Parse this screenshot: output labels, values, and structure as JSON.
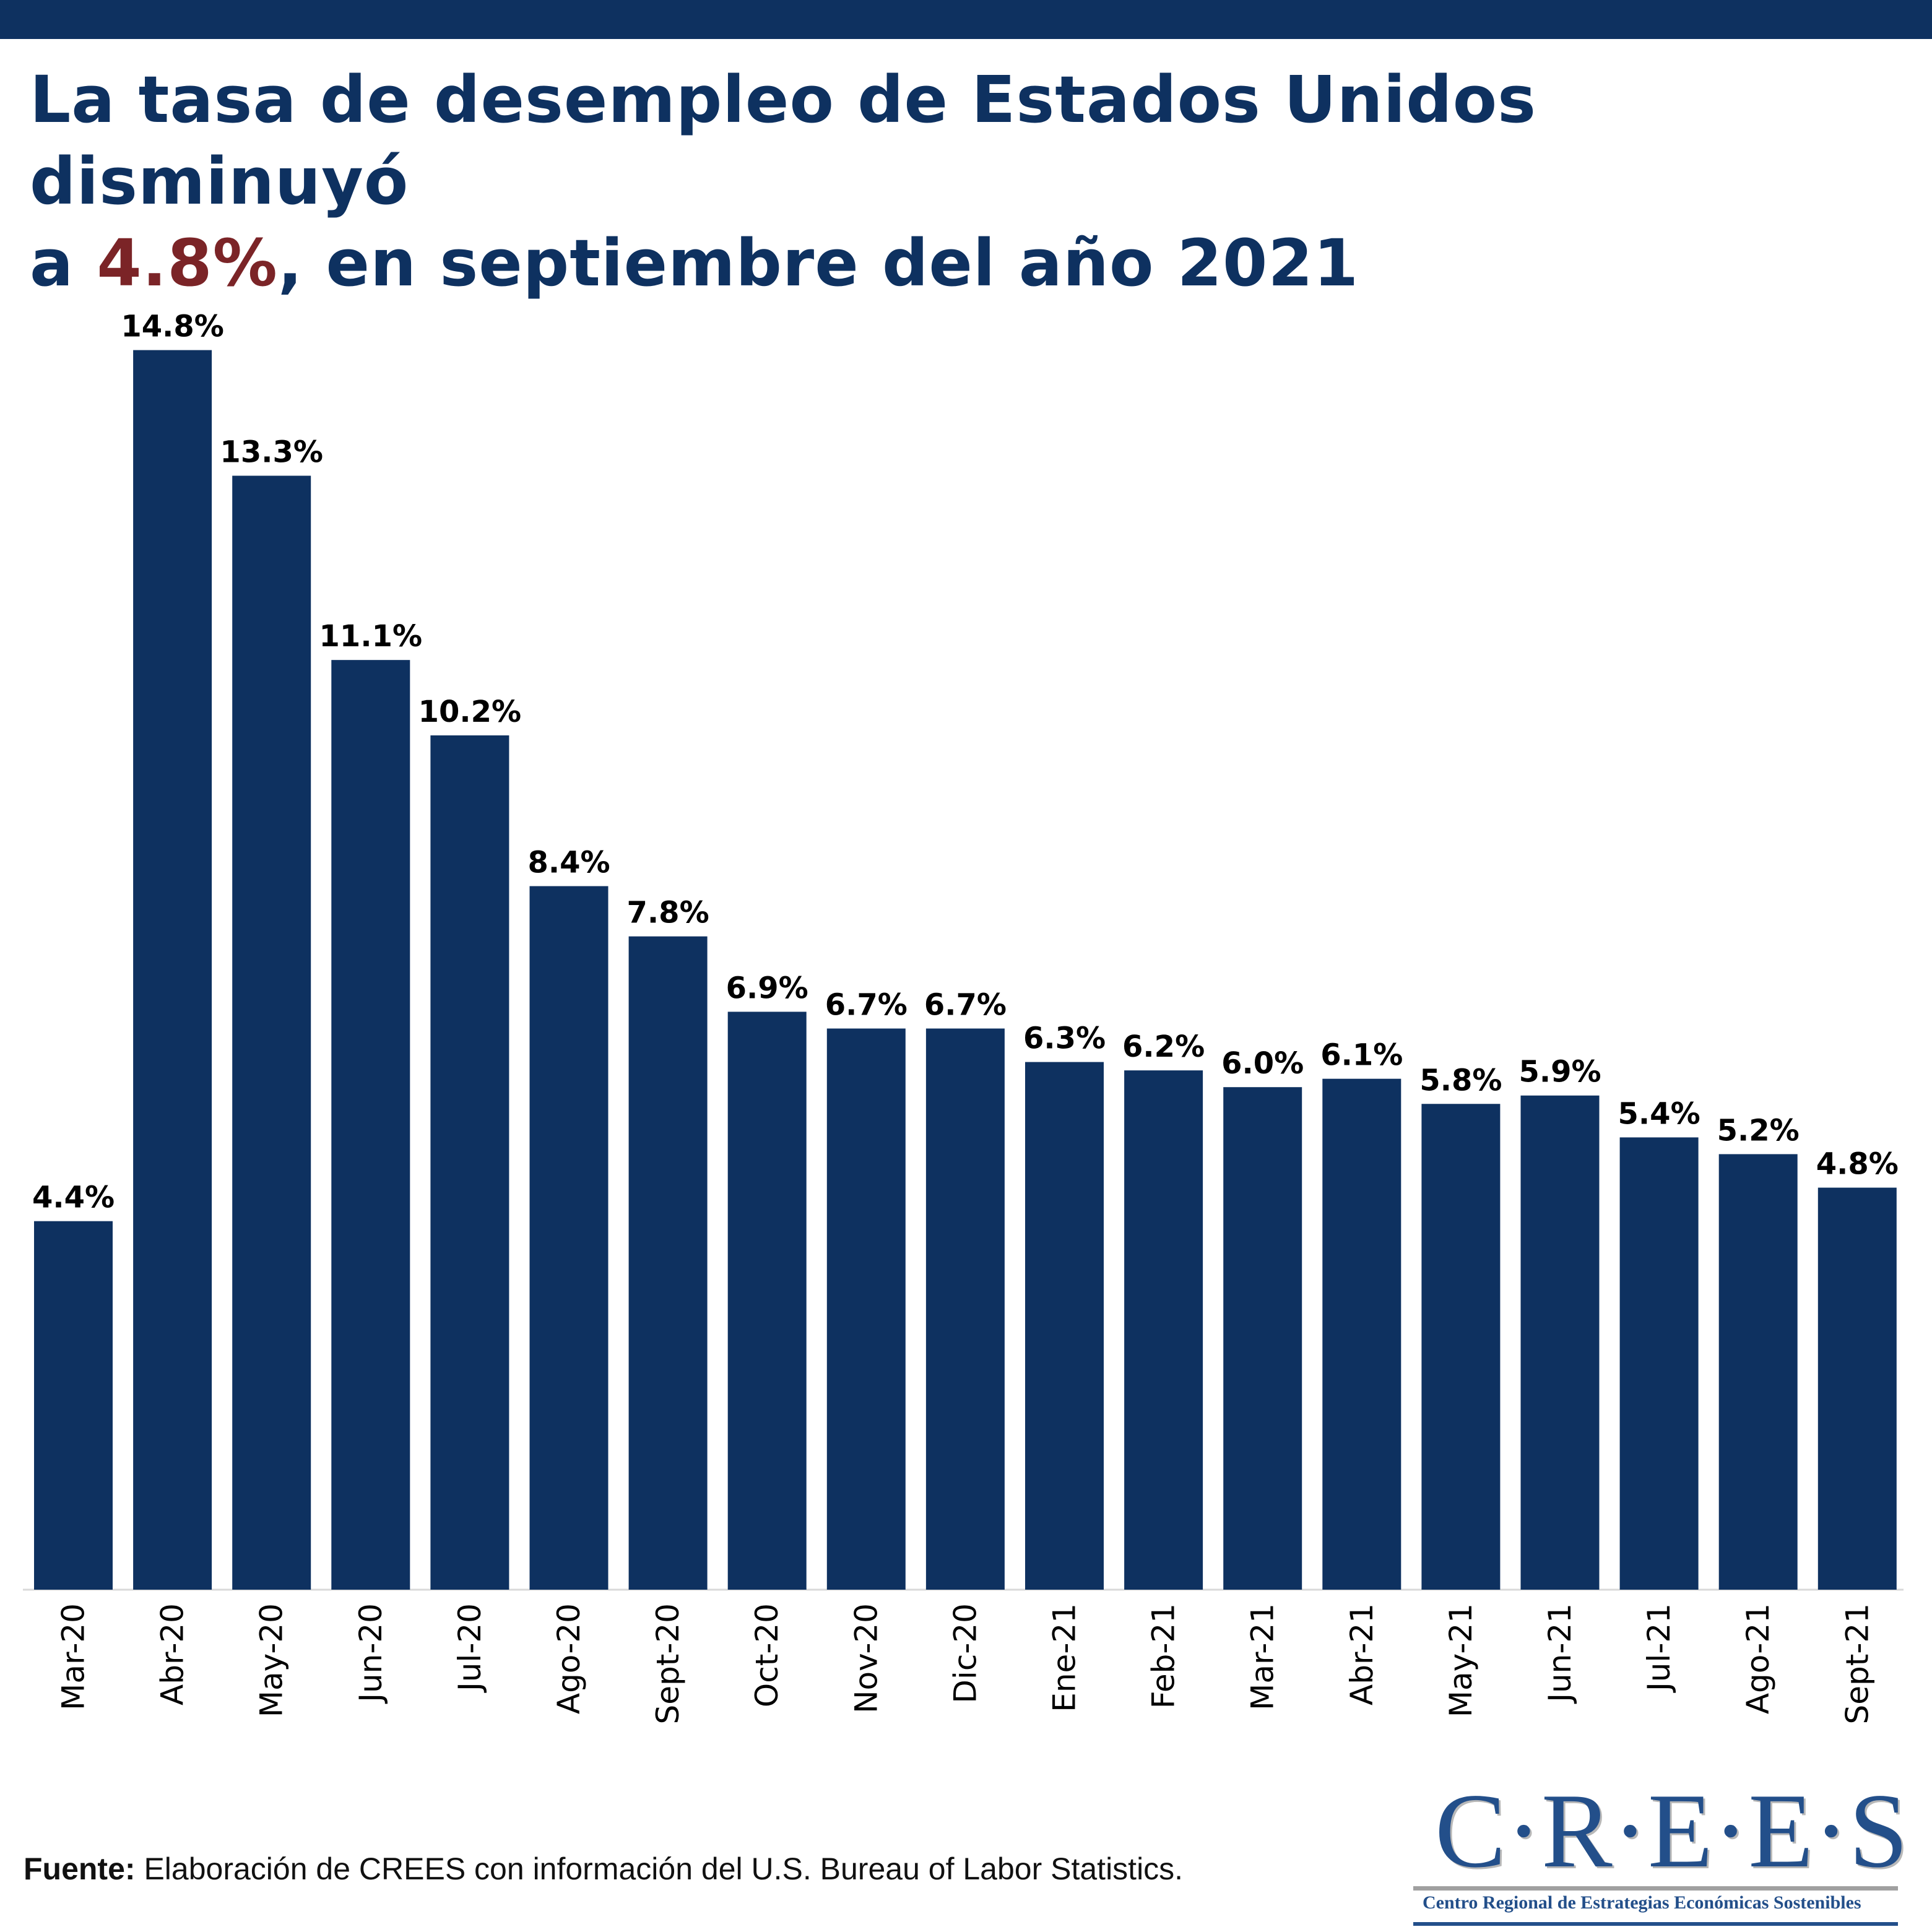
{
  "header": {
    "title_line1": "La tasa de desempleo de Estados Unidos disminuyó",
    "title_line2_prefix": "a ",
    "title_highlight": "4.8%",
    "title_line2_suffix": ", en septiembre del año 2021"
  },
  "colors": {
    "bar": "#0e3160",
    "title": "#0e3160",
    "highlight": "#7b2427",
    "logo": "#234f8a"
  },
  "chart_data": {
    "type": "bar",
    "title": "La tasa de desempleo de Estados Unidos disminuyó a 4.8%, en septiembre del año 2021",
    "xlabel": "",
    "ylabel": "",
    "ylim": [
      0,
      15
    ],
    "grid": false,
    "legend": "none",
    "categories": [
      "Mar-20",
      "Abr-20",
      "May-20",
      "Jun-20",
      "Jul-20",
      "Ago-20",
      "Sept-20",
      "Oct-20",
      "Nov-20",
      "Dic-20",
      "Ene-21",
      "Feb-21",
      "Mar-21",
      "Abr-21",
      "May-21",
      "Jun-21",
      "Jul-21",
      "Ago-21",
      "Sept-21"
    ],
    "values": [
      4.4,
      14.8,
      13.3,
      11.1,
      10.2,
      8.4,
      7.8,
      6.9,
      6.7,
      6.7,
      6.3,
      6.2,
      6.0,
      6.1,
      5.8,
      5.9,
      5.4,
      5.2,
      4.8
    ],
    "labels": [
      "4.4%",
      "14.8%",
      "13.3%",
      "11.1%",
      "10.2%",
      "8.4%",
      "7.8%",
      "6.9%",
      "6.7%",
      "6.7%",
      "6.3%",
      "6.2%",
      "6.0%",
      "6.1%",
      "5.8%",
      "5.9%",
      "5.4%",
      "5.2%",
      "4.8%"
    ],
    "unit": "%"
  },
  "footer": {
    "source_label": "Fuente:",
    "source_text": " Elaboración de CREES con información del U.S. Bureau of Labor Statistics."
  },
  "logo": {
    "name": "C·R·E·E·S",
    "subtitle": "Centro Regional de Estrategias Económicas Sostenibles"
  }
}
